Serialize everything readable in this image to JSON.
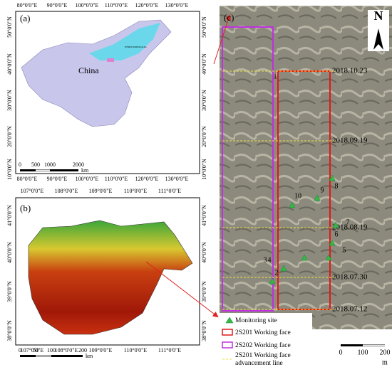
{
  "panel_a": {
    "label": "(a)",
    "lon_labels": [
      "80°0'0\"E",
      "90°0'0\"E",
      "100°0'0\"E",
      "110°0'0\"E",
      "120°0'0\"E",
      "130°0'0\"E"
    ],
    "lat_labels": [
      "50°0'0\"N",
      "40°0'0\"N",
      "30°0'0\"N",
      "20°0'0\"N",
      "10°0'0\"N"
    ],
    "country": "China",
    "region": "INNER MONGOLIA",
    "scale_labels": [
      "0",
      "500",
      "1000",
      "2000"
    ],
    "scale_unit": "km"
  },
  "panel_b": {
    "label": "(b)",
    "lon_labels": [
      "107°0'0\"E",
      "108°0'0\"E",
      "109°0'0\"E",
      "110°0'0\"E",
      "111°0'0\"E"
    ],
    "lat_labels": [
      "41°0'0\"N",
      "40°0'0\"N",
      "39°0'0\"N",
      "38°0'0\"N"
    ],
    "scale_labels": [
      "0",
      "50",
      "100",
      "200"
    ],
    "scale_unit": "km"
  },
  "panel_c": {
    "label": "(c)",
    "north": "N",
    "dates": [
      "2018.10.23",
      "2018.09.19",
      "2018.08.19",
      "2018.07.30",
      "2018.07.12"
    ],
    "sites": [
      "1",
      "2",
      "3",
      "4",
      "5",
      "6",
      "7",
      "8",
      "9",
      "10"
    ],
    "legend": [
      "Monitoring site",
      "2S201 Working face",
      "2S202 Working face",
      "2S201 Working face advancement line"
    ],
    "scale_labels": [
      "0",
      "100",
      "200"
    ],
    "scale_unit": "m"
  }
}
